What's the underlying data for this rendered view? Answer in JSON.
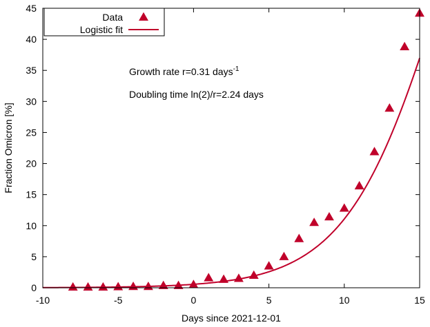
{
  "chart_data": {
    "type": "scatter",
    "xlabel": "Days since 2021-12-01",
    "ylabel": "Fraction Omicron [%]",
    "xlim": [
      -10,
      15
    ],
    "ylim": [
      0,
      45
    ],
    "x_ticks": [
      -10,
      -5,
      0,
      5,
      10,
      15
    ],
    "y_ticks": [
      0,
      5,
      10,
      15,
      20,
      25,
      30,
      35,
      40,
      45
    ],
    "grid": false,
    "legend_position": "top-left",
    "series": [
      {
        "name": "Data",
        "kind": "points",
        "marker": "triangle",
        "color": "#c0002a",
        "x": [
          -8,
          -7,
          -6,
          -5,
          -4,
          -3,
          -2,
          -1,
          0,
          1,
          2,
          3,
          4,
          5,
          6,
          7,
          8,
          9,
          10,
          11,
          12,
          13,
          14,
          15
        ],
        "y": [
          0.1,
          0.1,
          0.1,
          0.15,
          0.2,
          0.2,
          0.35,
          0.35,
          0.5,
          1.6,
          1.35,
          1.5,
          2.0,
          3.5,
          5.0,
          7.9,
          10.5,
          11.4,
          12.8,
          16.4,
          21.9,
          28.9,
          38.8,
          44.2
        ]
      },
      {
        "name": "Logistic fit",
        "kind": "line",
        "color": "#c0002a",
        "model": "logistic",
        "growth_rate": 0.31,
        "midpoint": 16.72
      }
    ],
    "annotations": {
      "growth_rate_text": "Growth rate r=0.31 days",
      "growth_rate_exponent": "-1",
      "doubling_time_text": "Doubling time ln(2)/r=2.24 days"
    }
  }
}
